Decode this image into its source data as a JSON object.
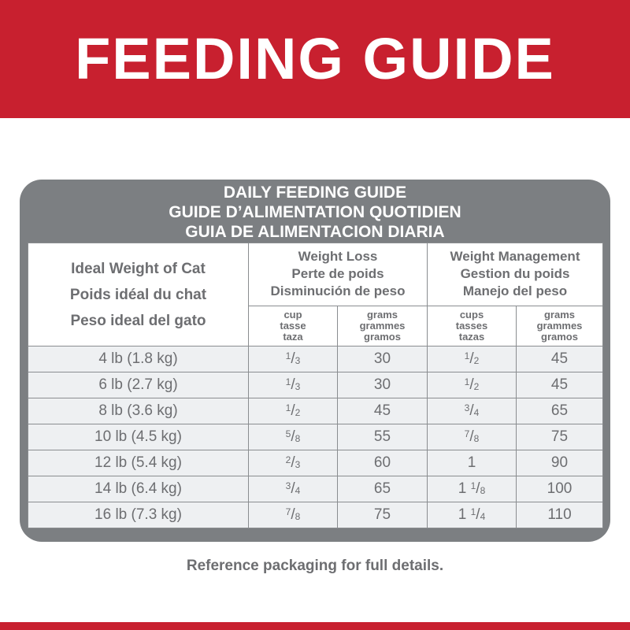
{
  "header": {
    "title": "FEEDING GUIDE"
  },
  "guide": {
    "titles": [
      "DAILY FEEDING GUIDE",
      "GUIDE D’ALIMENTATION QUOTIDIEN",
      "GUIA DE ALIMENTACION DIARIA"
    ],
    "weight_header": [
      "Ideal Weight of Cat",
      "Poids idéal du chat",
      "Peso ideal del gato"
    ],
    "groups": [
      {
        "lines": [
          "Weight Loss",
          "Perte de poids",
          "Disminución de peso"
        ],
        "units": [
          [
            "cup",
            "tasse",
            "taza"
          ],
          [
            "grams",
            "grammes",
            "gramos"
          ]
        ]
      },
      {
        "lines": [
          "Weight Management",
          "Gestion du poids",
          "Manejo del peso"
        ],
        "units": [
          [
            "cups",
            "tasses",
            "tazas"
          ],
          [
            "grams",
            "grammes",
            "gramos"
          ]
        ]
      }
    ],
    "rows": [
      [
        "4 lb (1.8 kg)",
        "1/3",
        "30",
        "1/2",
        "45"
      ],
      [
        "6 lb (2.7 kg)",
        "1/3",
        "30",
        "1/2",
        "45"
      ],
      [
        "8 lb (3.6 kg)",
        "1/2",
        "45",
        "3/4",
        "65"
      ],
      [
        "10 lb (4.5 kg)",
        "5/8",
        "55",
        "7/8",
        "75"
      ],
      [
        "12 lb (5.4 kg)",
        "2/3",
        "60",
        "1",
        "90"
      ],
      [
        "14 lb (6.4 kg)",
        "3/4",
        "65",
        "1 1/8",
        "100"
      ],
      [
        "16 lb (7.3 kg)",
        "7/8",
        "75",
        "1 1/4",
        "110"
      ]
    ]
  },
  "footer": {
    "note": "Reference packaging for full details."
  }
}
